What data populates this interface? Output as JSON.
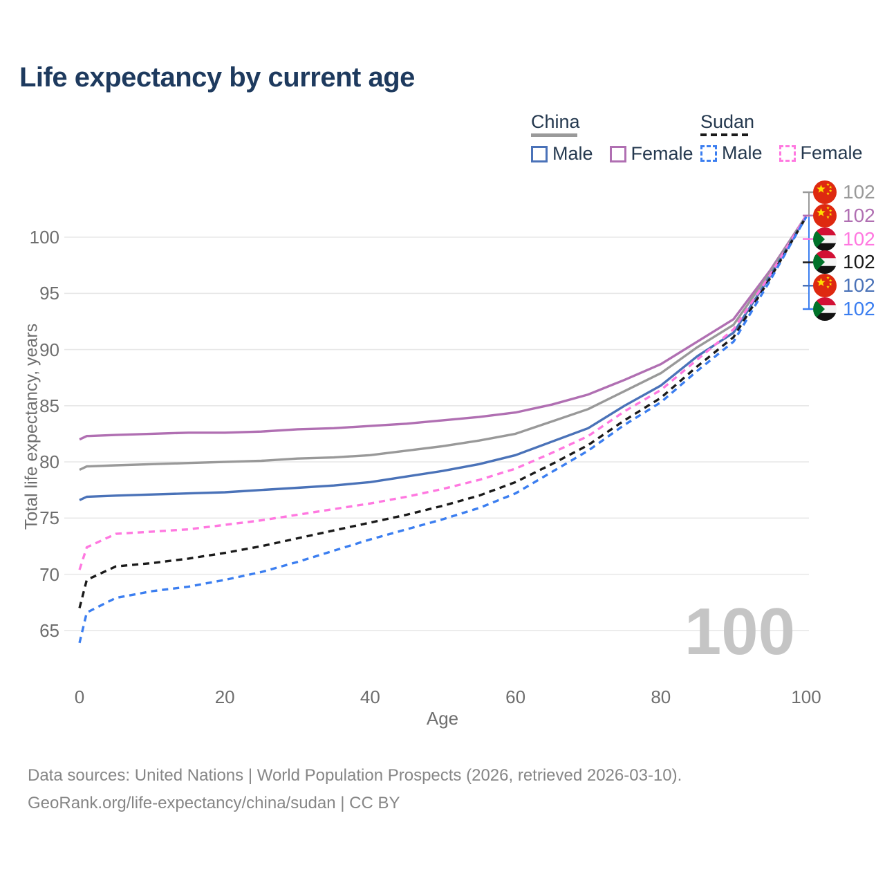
{
  "page": {
    "title": "Life expectancy by current age",
    "watermark_age": "100"
  },
  "legend": {
    "groups": [
      {
        "country": "China",
        "line_style": "solid",
        "underline_color": "#9a9a9a",
        "items": [
          {
            "label": "Male",
            "color": "#4a72b8",
            "dashed": false
          },
          {
            "label": "Female",
            "color": "#b06fb2",
            "dashed": false
          }
        ]
      },
      {
        "country": "Sudan",
        "line_style": "dashed",
        "underline_color": "#1a1a1a",
        "items": [
          {
            "label": "Male",
            "color": "#3b7ef0",
            "dashed": true
          },
          {
            "label": "Female",
            "color": "#ff78e0",
            "dashed": true
          }
        ]
      }
    ]
  },
  "chart_data": {
    "type": "line",
    "title": "Life expectancy by current age",
    "xlabel": "Age",
    "ylabel": "Total life expectancy, years",
    "xlim": [
      0,
      100
    ],
    "ylim": [
      63,
      103
    ],
    "x_ticks": [
      0,
      20,
      40,
      60,
      80,
      100
    ],
    "y_ticks": [
      65,
      70,
      75,
      80,
      85,
      90,
      95,
      100
    ],
    "grid": true,
    "legend_position": "top-right",
    "x": [
      0,
      1,
      5,
      10,
      15,
      20,
      25,
      30,
      35,
      40,
      45,
      50,
      55,
      60,
      65,
      70,
      75,
      80,
      85,
      90,
      95,
      100
    ],
    "series": [
      {
        "name": "China Female",
        "country": "China",
        "sex": "Female",
        "color": "#b06fb2",
        "dashed": false,
        "values": [
          82.0,
          82.3,
          82.4,
          82.5,
          82.6,
          82.6,
          82.7,
          82.9,
          83.0,
          83.2,
          83.4,
          83.7,
          84.0,
          84.4,
          85.1,
          86.0,
          87.3,
          88.7,
          90.7,
          92.7,
          97.0,
          101.9
        ]
      },
      {
        "name": "China Both Sexes",
        "country": "China",
        "sex": "Both",
        "color": "#999999",
        "dashed": false,
        "values": [
          79.3,
          79.6,
          79.7,
          79.8,
          79.9,
          80.0,
          80.1,
          80.3,
          80.4,
          80.6,
          81.0,
          81.4,
          81.9,
          82.5,
          83.6,
          84.7,
          86.3,
          87.9,
          90.2,
          92.2,
          96.8,
          101.9
        ]
      },
      {
        "name": "China Male",
        "country": "China",
        "sex": "Male",
        "color": "#4a72b8",
        "dashed": false,
        "values": [
          76.6,
          76.9,
          77.0,
          77.1,
          77.2,
          77.3,
          77.5,
          77.7,
          77.9,
          78.2,
          78.7,
          79.2,
          79.8,
          80.6,
          81.8,
          83.0,
          85.0,
          86.8,
          89.4,
          91.5,
          96.5,
          101.8
        ]
      },
      {
        "name": "Sudan Female",
        "country": "Sudan",
        "sex": "Female",
        "color": "#ff78e0",
        "dashed": true,
        "values": [
          70.4,
          72.4,
          73.6,
          73.8,
          74.0,
          74.4,
          74.8,
          75.3,
          75.8,
          76.3,
          76.9,
          77.6,
          78.4,
          79.4,
          80.8,
          82.3,
          84.5,
          86.4,
          89.1,
          91.8,
          96.6,
          101.9
        ]
      },
      {
        "name": "Sudan Both Sexes",
        "country": "Sudan",
        "sex": "Both",
        "color": "#1a1a1a",
        "dashed": true,
        "values": [
          67.0,
          69.5,
          70.7,
          71.0,
          71.4,
          71.9,
          72.5,
          73.2,
          73.9,
          74.6,
          75.3,
          76.1,
          77.0,
          78.2,
          79.8,
          81.5,
          83.7,
          85.7,
          88.5,
          91.1,
          96.3,
          101.8
        ]
      },
      {
        "name": "Sudan Male",
        "country": "Sudan",
        "sex": "Male",
        "color": "#3b7ef0",
        "dashed": true,
        "values": [
          63.9,
          66.6,
          67.9,
          68.5,
          68.9,
          69.5,
          70.2,
          71.1,
          72.1,
          73.1,
          74.0,
          74.9,
          75.9,
          77.2,
          79.1,
          81.0,
          83.3,
          85.3,
          88.1,
          90.7,
          96.1,
          101.8
        ]
      }
    ],
    "end_labels": [
      {
        "country": "china",
        "value": "102",
        "color": "#999999"
      },
      {
        "country": "china",
        "value": "102",
        "color": "#b06fb2"
      },
      {
        "country": "sudan",
        "value": "102",
        "color": "#ff78e0"
      },
      {
        "country": "sudan",
        "value": "102",
        "color": "#1a1a1a"
      },
      {
        "country": "china",
        "value": "102",
        "color": "#4a72b8"
      },
      {
        "country": "sudan",
        "value": "102",
        "color": "#3b7ef0"
      }
    ]
  },
  "colors": {
    "title_text": "#1e3a5e",
    "legend_text": "#25394f",
    "axis_text": "#6e6e6e",
    "grid": "#e8e8e8",
    "watermark": "#c5c5c5",
    "footer_text": "#868686",
    "china_flag_red": "#de2910",
    "china_flag_yellow": "#ffde00",
    "sudan_flag_red": "#d21034",
    "sudan_flag_green": "#007229"
  },
  "footer": {
    "line1": "Data sources: United Nations | World Population Prospects (2026, retrieved 2026-03-10).",
    "line2": "GeoRank.org/life-expectancy/china/sudan | CC BY"
  }
}
